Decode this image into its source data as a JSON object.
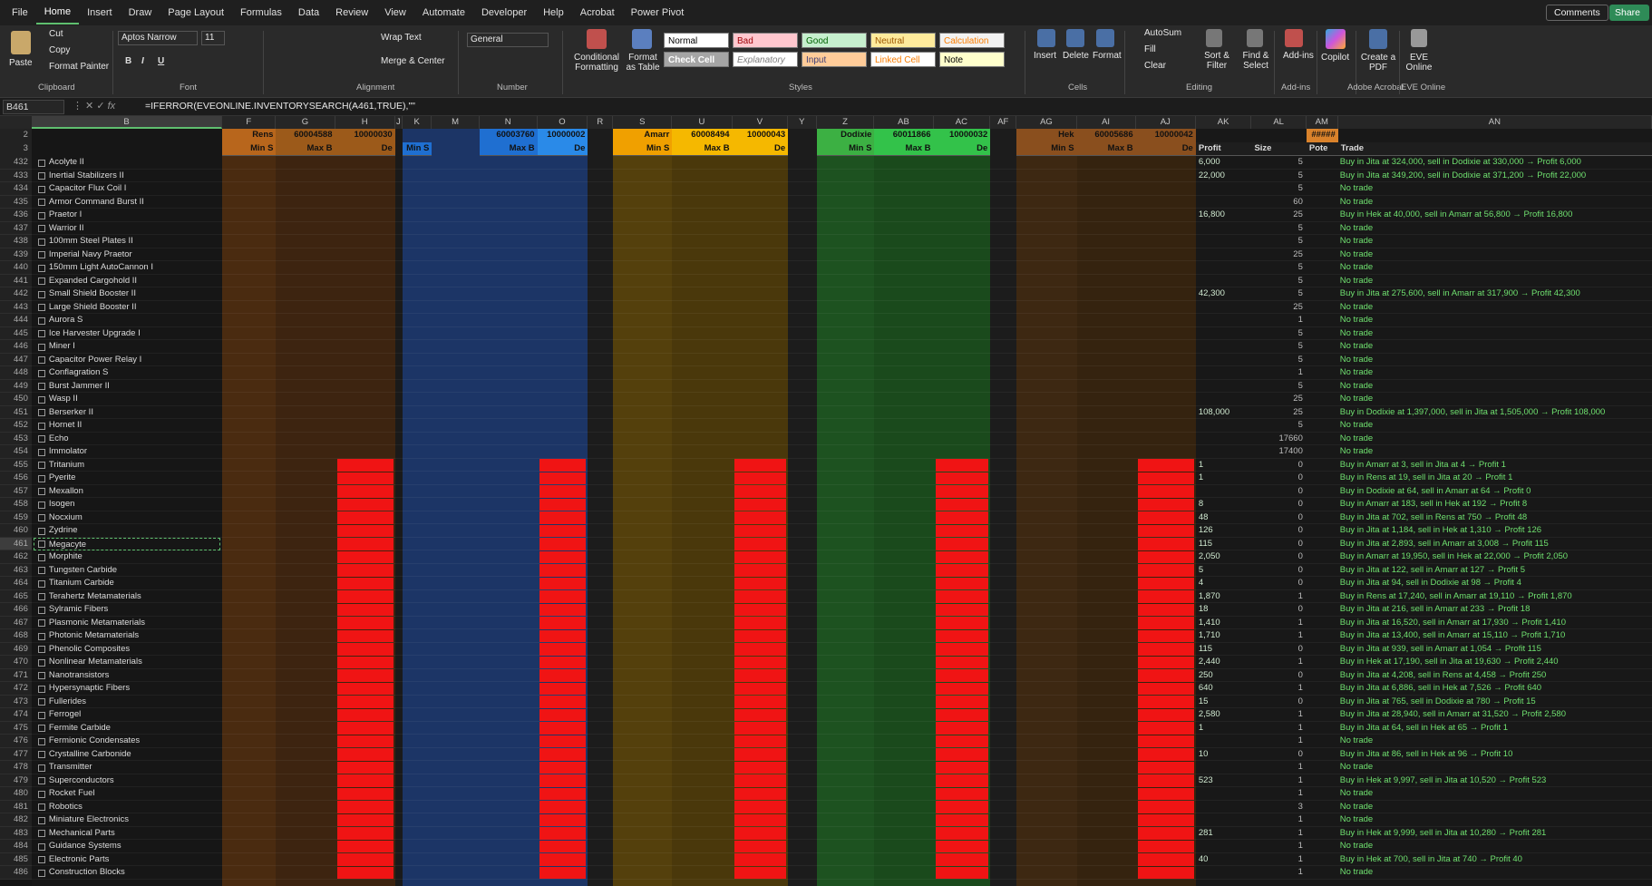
{
  "tabs": [
    {
      "label": "File"
    },
    {
      "label": "Home",
      "active": true
    },
    {
      "label": "Insert"
    },
    {
      "label": "Draw"
    },
    {
      "label": "Page Layout"
    },
    {
      "label": "Formulas"
    },
    {
      "label": "Data"
    },
    {
      "label": "Review"
    },
    {
      "label": "View"
    },
    {
      "label": "Automate"
    },
    {
      "label": "Developer"
    },
    {
      "label": "Help"
    },
    {
      "label": "Acrobat"
    },
    {
      "label": "Power Pivot"
    }
  ],
  "top_buttons": {
    "comments": "Comments",
    "share": "Share"
  },
  "ribbon": {
    "clipboard": {
      "label": "Clipboard",
      "paste": "Paste",
      "cut": "Cut",
      "copy": "Copy",
      "format_painter": "Format Painter"
    },
    "font": {
      "label": "Font",
      "name": "Aptos Narrow",
      "size": "11"
    },
    "alignment": {
      "label": "Alignment",
      "wrap": "Wrap Text",
      "merge": "Merge & Center"
    },
    "number": {
      "label": "Number",
      "format": "General"
    },
    "styles": {
      "label": "Styles",
      "conditional": "Conditional Formatting",
      "table": "Format as Table",
      "cells": [
        "Normal",
        "Bad",
        "Good",
        "Neutral",
        "Calculation",
        "Check Cell",
        "Explanatory T...",
        "Input",
        "Linked Cell",
        "Note"
      ]
    },
    "cells": {
      "label": "Cells",
      "insert": "Insert",
      "delete": "Delete",
      "format": "Format"
    },
    "editing": {
      "label": "Editing",
      "autosum": "AutoSum",
      "fill": "Fill",
      "clear": "Clear",
      "sort": "Sort & Filter",
      "find": "Find & Select"
    },
    "addins": {
      "label": "Add-ins",
      "button": "Add-ins"
    },
    "copilot": {
      "button": "Copilot"
    },
    "acrobat": {
      "label": "Adobe Acrobat",
      "button": "Create a PDF"
    },
    "eve": {
      "label": "EVE Online",
      "button": "EVE Online"
    }
  },
  "formula_bar": {
    "name_box": "B461",
    "formula": "=IFERROR(EVEONLINE.INVENTORYSEARCH(A461,TRUE),\"\""
  },
  "columns": [
    "B",
    "F",
    "G",
    "H",
    "J",
    "K",
    "M",
    "N",
    "O",
    "R",
    "S",
    "U",
    "V",
    "Y",
    "Z",
    "AB",
    "AC",
    "AF",
    "AG",
    "AI",
    "AJ",
    "AK",
    "AL",
    "AM",
    "AN"
  ],
  "header_rows": [
    2,
    3
  ],
  "header_row2": {
    "F": "Rens",
    "G": "60004588",
    "H": "10000030",
    "N": "60003760",
    "O": "10000002",
    "S": "Amarr",
    "U": "60008494",
    "V": "10000043",
    "Z": "Dodixie",
    "AB": "60011866",
    "AC": "10000032",
    "AG": "Hek",
    "AI": "60005686",
    "AJ": "10000042",
    "AM": "#####"
  },
  "header_row3": {
    "F": "Min S",
    "G": "Max B",
    "H": "De",
    "K": "Min S",
    "N": "Max B",
    "O": "De",
    "S": "Min S",
    "U": "Max B",
    "V": "De",
    "Z": "Min S",
    "AB": "Max B",
    "AC": "De",
    "AG": "Min S",
    "AI": "Max B",
    "AJ": "De",
    "AK": "Profit",
    "AL": "Size",
    "AM": "Pote",
    "AN": "Trade"
  },
  "rows": [
    {
      "n": 432,
      "item": "Acolyte II",
      "profit": "6,000",
      "size": 5,
      "trade": "Buy in Jita at 324,000, sell in Dodixie at 330,000 → Profit 6,000"
    },
    {
      "n": 433,
      "item": "Inertial Stabilizers II",
      "profit": "22,000",
      "size": 5,
      "trade": "Buy in Jita at 349,200, sell in Dodixie at 371,200 → Profit 22,000"
    },
    {
      "n": 434,
      "item": "Capacitor Flux Coil I",
      "size": 5,
      "trade": "No trade"
    },
    {
      "n": 435,
      "item": "Armor Command Burst II",
      "size": 60,
      "trade": "No trade"
    },
    {
      "n": 436,
      "item": "Praetor I",
      "profit": "16,800",
      "size": 25,
      "trade": "Buy in Hek at 40,000, sell in Amarr at 56,800 → Profit 16,800"
    },
    {
      "n": 437,
      "item": "Warrior II",
      "size": 5,
      "trade": "No trade"
    },
    {
      "n": 438,
      "item": "100mm Steel Plates II",
      "size": 5,
      "trade": "No trade"
    },
    {
      "n": 439,
      "item": "Imperial Navy Praetor",
      "size": 25,
      "trade": "No trade"
    },
    {
      "n": 440,
      "item": "150mm Light AutoCannon I",
      "size": 5,
      "trade": "No trade"
    },
    {
      "n": 441,
      "item": "Expanded Cargohold II",
      "size": 5,
      "trade": "No trade"
    },
    {
      "n": 442,
      "item": "Small Shield Booster II",
      "profit": "42,300",
      "size": 5,
      "trade": "Buy in Jita at 275,600, sell in Amarr at 317,900 → Profit 42,300"
    },
    {
      "n": 443,
      "item": "Large Shield Booster II",
      "size": 25,
      "trade": "No trade"
    },
    {
      "n": 444,
      "item": "Aurora S",
      "size": 1,
      "trade": "No trade"
    },
    {
      "n": 445,
      "item": "Ice Harvester Upgrade I",
      "size": 5,
      "trade": "No trade"
    },
    {
      "n": 446,
      "item": "Miner I",
      "size": 5,
      "trade": "No trade"
    },
    {
      "n": 447,
      "item": "Capacitor Power Relay I",
      "size": 5,
      "trade": "No trade"
    },
    {
      "n": 448,
      "item": "Conflagration S",
      "size": 1,
      "trade": "No trade"
    },
    {
      "n": 449,
      "item": "Burst Jammer II",
      "size": 5,
      "trade": "No trade"
    },
    {
      "n": 450,
      "item": "Wasp II",
      "size": 25,
      "trade": "No trade"
    },
    {
      "n": 451,
      "item": "Berserker II",
      "profit": "108,000",
      "size": 25,
      "trade": "Buy in Dodixie at 1,397,000, sell in Jita at 1,505,000 → Profit 108,000"
    },
    {
      "n": 452,
      "item": "Hornet II",
      "size": 5,
      "trade": "No trade"
    },
    {
      "n": 453,
      "item": "Echo",
      "size": 17660,
      "trade": "No trade"
    },
    {
      "n": 454,
      "item": "Immolator",
      "size": 17400,
      "trade": "No trade"
    },
    {
      "n": 455,
      "item": "Tritanium",
      "profit": "1",
      "size": 0,
      "trade": "Buy in Amarr at 3, sell in Jita at 4 → Profit 1"
    },
    {
      "n": 456,
      "item": "Pyerite",
      "profit": "1",
      "size": 0,
      "trade": "Buy in Rens at 19, sell in Jita at 20 → Profit 1"
    },
    {
      "n": 457,
      "item": "Mexallon",
      "size": 0,
      "trade": "Buy in Dodixie at 64, sell in Amarr at 64 → Profit 0"
    },
    {
      "n": 458,
      "item": "Isogen",
      "profit": "8",
      "size": 0,
      "trade": "Buy in Amarr at 183, sell in Hek at 192 → Profit 8"
    },
    {
      "n": 459,
      "item": "Nocxium",
      "profit": "48",
      "size": 0,
      "trade": "Buy in Jita at 702, sell in Rens at 750 → Profit 48"
    },
    {
      "n": 460,
      "item": "Zydrine",
      "profit": "126",
      "size": 0,
      "trade": "Buy in Jita at 1,184, sell in Hek at 1,310 → Profit 126"
    },
    {
      "n": 461,
      "item": "Megacyte",
      "profit": "115",
      "size": 0,
      "trade": "Buy in Jita at 2,893, sell in Amarr at 3,008 → Profit 115"
    },
    {
      "n": 462,
      "item": "Morphite",
      "profit": "2,050",
      "size": 0,
      "trade": "Buy in Amarr at 19,950, sell in Hek at 22,000 → Profit 2,050"
    },
    {
      "n": 463,
      "item": "Tungsten Carbide",
      "profit": "5",
      "size": 0,
      "trade": "Buy in Jita at 122, sell in Amarr at 127 → Profit 5"
    },
    {
      "n": 464,
      "item": "Titanium Carbide",
      "profit": "4",
      "size": 0,
      "trade": "Buy in Jita at 94, sell in Dodixie at 98 → Profit 4"
    },
    {
      "n": 465,
      "item": "Terahertz Metamaterials",
      "profit": "1,870",
      "size": 1,
      "trade": "Buy in Rens at 17,240, sell in Amarr at 19,110 → Profit 1,870"
    },
    {
      "n": 466,
      "item": "Sylramic Fibers",
      "profit": "18",
      "size": 0,
      "trade": "Buy in Jita at 216, sell in Amarr at 233 → Profit 18"
    },
    {
      "n": 467,
      "item": "Plasmonic Metamaterials",
      "profit": "1,410",
      "size": 1,
      "trade": "Buy in Jita at 16,520, sell in Amarr at 17,930 → Profit 1,410"
    },
    {
      "n": 468,
      "item": "Photonic Metamaterials",
      "profit": "1,710",
      "size": 1,
      "trade": "Buy in Jita at 13,400, sell in Amarr at 15,110 → Profit 1,710"
    },
    {
      "n": 469,
      "item": "Phenolic Composites",
      "profit": "115",
      "size": 0,
      "trade": "Buy in Jita at 939, sell in Amarr at 1,054 → Profit 115"
    },
    {
      "n": 470,
      "item": "Nonlinear Metamaterials",
      "profit": "2,440",
      "size": 1,
      "trade": "Buy in Hek at 17,190, sell in Jita at 19,630 → Profit 2,440"
    },
    {
      "n": 471,
      "item": "Nanotransistors",
      "profit": "250",
      "size": 0,
      "trade": "Buy in Jita at 4,208, sell in Rens at 4,458 → Profit 250"
    },
    {
      "n": 472,
      "item": "Hypersynaptic Fibers",
      "profit": "640",
      "size": 1,
      "trade": "Buy in Jita at 6,886, sell in Hek at 7,526 → Profit 640"
    },
    {
      "n": 473,
      "item": "Fullerides",
      "profit": "15",
      "size": 0,
      "trade": "Buy in Jita at 765, sell in Dodixie at 780 → Profit 15"
    },
    {
      "n": 474,
      "item": "Ferrogel",
      "profit": "2,580",
      "size": 1,
      "trade": "Buy in Jita at 28,940, sell in Amarr at 31,520 → Profit 2,580"
    },
    {
      "n": 475,
      "item": "Fermite Carbide",
      "profit": "1",
      "size": 1,
      "trade": "Buy in Jita at 64, sell in Hek at 65 → Profit 1"
    },
    {
      "n": 476,
      "item": "Fermionic Condensates",
      "size": 1,
      "trade": "No trade"
    },
    {
      "n": 477,
      "item": "Crystalline Carbonide",
      "profit": "10",
      "size": 0,
      "trade": "Buy in Jita at 86, sell in Hek at 96 → Profit 10"
    },
    {
      "n": 478,
      "item": "Transmitter",
      "size": 1,
      "trade": "No trade"
    },
    {
      "n": 479,
      "item": "Superconductors",
      "profit": "523",
      "size": 1,
      "trade": "Buy in Hek at 9,997, sell in Jita at 10,520 → Profit 523"
    },
    {
      "n": 480,
      "item": "Rocket Fuel",
      "size": 1,
      "trade": "No trade"
    },
    {
      "n": 481,
      "item": "Robotics",
      "size": 3,
      "trade": "No trade"
    },
    {
      "n": 482,
      "item": "Miniature Electronics",
      "size": 1,
      "trade": "No trade"
    },
    {
      "n": 483,
      "item": "Mechanical Parts",
      "profit": "281",
      "size": 1,
      "trade": "Buy in Hek at 9,999, sell in Jita at 10,280 → Profit 281"
    },
    {
      "n": 484,
      "item": "Guidance Systems",
      "size": 1,
      "trade": "No trade"
    },
    {
      "n": 485,
      "item": "Electronic Parts",
      "profit": "40",
      "size": 1,
      "trade": "Buy in Hek at 700, sell in Jita at 740 → Profit 40"
    },
    {
      "n": 486,
      "item": "Construction Blocks",
      "size": 1,
      "trade": "No trade"
    }
  ]
}
